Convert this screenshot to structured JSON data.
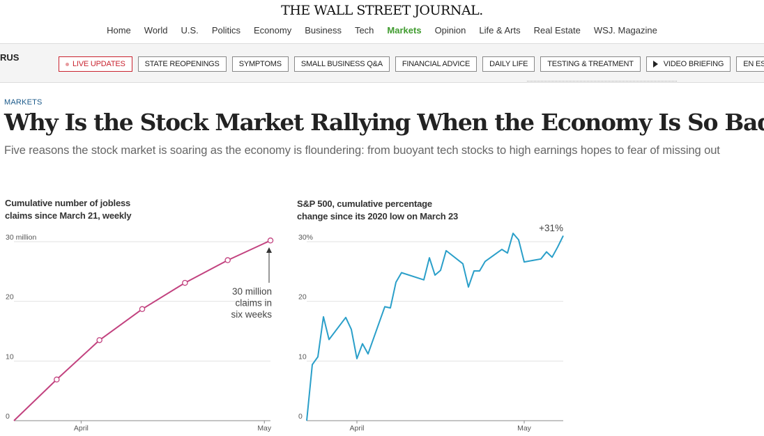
{
  "header": {
    "masthead": "THE WALL STREET JOURNAL.",
    "nav": [
      "Home",
      "World",
      "U.S.",
      "Politics",
      "Economy",
      "Business",
      "Tech",
      "Markets",
      "Opinion",
      "Life & Arts",
      "Real Estate",
      "WSJ. Magazine"
    ],
    "active_nav": "Markets"
  },
  "subnav": {
    "section_label": "RUS",
    "pills": [
      "LIVE UPDATES",
      "STATE REOPENINGS",
      "SYMPTOMS",
      "SMALL BUSINESS Q&A",
      "FINANCIAL ADVICE",
      "DAILY LIFE",
      "TESTING & TREATMENT",
      "VIDEO BRIEFING",
      "EN ESPAÑOL"
    ]
  },
  "article": {
    "kicker": "MARKETS",
    "headline": "Why Is the Stock Market Rallying When the Economy Is So Bad?",
    "dek": "Five reasons the stock market is soaring as the economy is floundering: from buoyant tech stocks to high earnings hopes to fear of missing out"
  },
  "colors": {
    "claims_line": "#c2427f",
    "sp_line": "#2a9fc9",
    "active_nav": "#3f9b2e",
    "live": "#c9232f"
  },
  "chart_data": [
    {
      "type": "line",
      "title_lines": [
        "Cumulative number of jobless",
        "claims since March 21, weekly"
      ],
      "x": [
        "Mar 21",
        "Mar 28",
        "Apr 4",
        "Apr 11",
        "Apr 18",
        "Apr 25",
        "May 2"
      ],
      "y": [
        0,
        6.9,
        13.5,
        18.7,
        23.1,
        26.9,
        30.2
      ],
      "ylim": [
        0,
        30
      ],
      "y_ticks": [
        "30 million",
        "20",
        "10",
        "0"
      ],
      "x_ticks": [
        "April",
        "May"
      ],
      "annotation": [
        "30 million",
        "claims in",
        "six weeks"
      ]
    },
    {
      "type": "line",
      "title_lines": [
        "S&P 500, cumulative percentage",
        "change since its 2020 low on March 23"
      ],
      "x": [
        "Mar 23",
        "Mar 24",
        "Mar 25",
        "Mar 26",
        "Mar 27",
        "Mar 30",
        "Mar 31",
        "Apr 1",
        "Apr 2",
        "Apr 3",
        "Apr 6",
        "Apr 7",
        "Apr 8",
        "Apr 9",
        "Apr 13",
        "Apr 14",
        "Apr 15",
        "Apr 16",
        "Apr 17",
        "Apr 20",
        "Apr 21",
        "Apr 22",
        "Apr 23",
        "Apr 24",
        "Apr 27",
        "Apr 28",
        "Apr 29",
        "Apr 30",
        "May 1",
        "May 4",
        "May 5",
        "May 6",
        "May 7",
        "May 8"
      ],
      "y": [
        0,
        9.4,
        10.7,
        17.4,
        13.6,
        17.3,
        15.3,
        10.4,
        12.9,
        11.2,
        19.1,
        18.9,
        23.2,
        24.8,
        23.6,
        27.3,
        24.4,
        25.2,
        28.5,
        26.3,
        22.4,
        25.1,
        25.1,
        26.7,
        28.7,
        28.1,
        31.4,
        30.3,
        26.6,
        27.1,
        28.3,
        27.4,
        29.1,
        31.0
      ],
      "ylim": [
        0,
        30
      ],
      "y_ticks": [
        "30%",
        "20",
        "10",
        "0"
      ],
      "x_ticks": [
        "April",
        "May"
      ],
      "end_label": "+31%"
    }
  ]
}
